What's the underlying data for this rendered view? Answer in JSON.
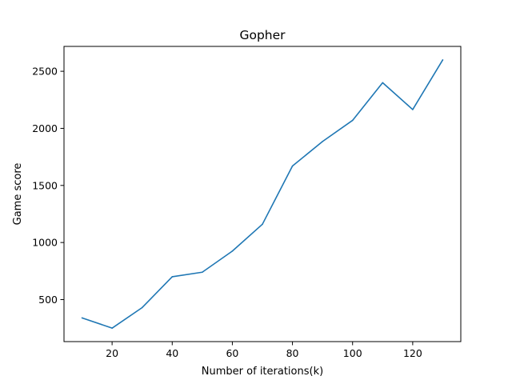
{
  "chart_data": {
    "type": "line",
    "title": "Gopher",
    "xlabel": "Number of iterations(k)",
    "ylabel": "Game score",
    "xlim": [
      4,
      136
    ],
    "ylim": [
      132,
      2718
    ],
    "xticks": [
      20,
      40,
      60,
      80,
      100,
      120
    ],
    "yticks": [
      500,
      1000,
      1500,
      2000,
      2500
    ],
    "grid": false,
    "line_color": "#1f77b4",
    "series": [
      {
        "x": [
          10,
          20,
          30,
          40,
          50,
          60,
          70,
          80,
          90,
          100,
          110,
          120,
          130
        ],
        "values": [
          340,
          250,
          430,
          700,
          740,
          925,
          1160,
          1670,
          1885,
          2070,
          2400,
          2165,
          2600
        ]
      }
    ]
  }
}
